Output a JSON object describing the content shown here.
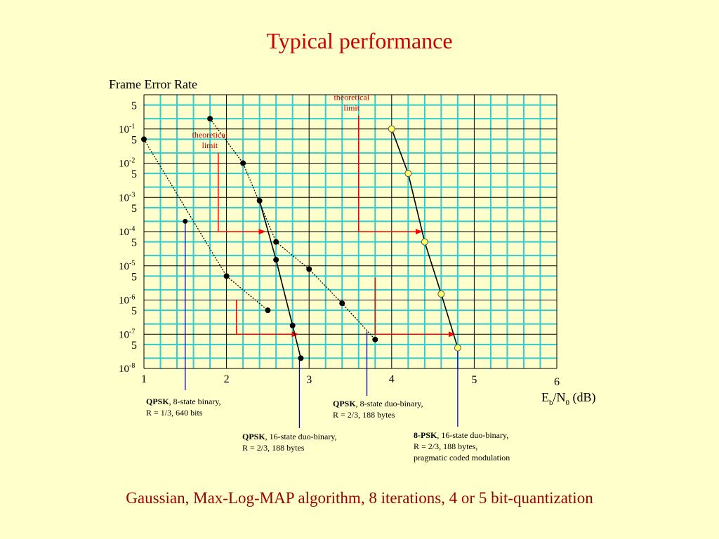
{
  "page": {
    "title": "Typical performance",
    "footer": "Gaussian, Max-Log-MAP algorithm, 8 iterations, 4 or 5 bit-quantization"
  },
  "colors": {
    "background": "#ffffcc",
    "title": "#cc0000",
    "footer": "#990000",
    "minor_grid": "#33cccc",
    "major_grid": "#000000",
    "theory_arrow": "#ff0000",
    "leader_line": "#0000cc",
    "psk_marker": "#ffff66"
  },
  "notes": [
    {
      "bold": "QPSK",
      "rest": ", 8-state binary,",
      "line2": "R = 1/3, 640 bits"
    },
    {
      "bold": "QPSK",
      "rest": ", 8-state duo-binary,",
      "line2": "R = 2/3, 188 bytes"
    },
    {
      "bold": "QPSK",
      "rest": ", 16-state duo-binary,",
      "line2": "R = 2/3, 188 bytes"
    },
    {
      "bold": "8-PSK",
      "rest": ", 16-state duo-binary,",
      "line2": "R = 2/3, 188 bytes,",
      "line3": "pragmatic coded modulation"
    }
  ],
  "chart_data": {
    "type": "line",
    "ylabel": "Frame Error Rate",
    "xlabel_base": "E",
    "xlabel_sub1": "b",
    "xlabel_mid": "/N",
    "xlabel_sub2": "0",
    "xlabel_tail": " (dB)",
    "xlim": [
      1,
      6
    ],
    "ylim_exponent": [
      -8,
      0
    ],
    "y_log_scale": true,
    "grid": true,
    "x_ticks": [
      "1",
      "2",
      "3",
      "4",
      "5",
      "6"
    ],
    "y_tick_base": "10",
    "y_tick_exponents": [
      "-1",
      "-2",
      "-3",
      "-4",
      "-5",
      "-6",
      "-7",
      "-8"
    ],
    "y_tick_five": "5",
    "series": [
      {
        "style": "dotted",
        "marker": "black",
        "points": [
          [
            1.0,
            0.05
          ],
          [
            2.0,
            5e-06
          ],
          [
            2.5,
            5e-07
          ]
        ]
      },
      {
        "style": "dotted",
        "marker": "black",
        "points": [
          [
            1.8,
            0.2
          ],
          [
            2.2,
            0.01
          ],
          [
            2.6,
            5e-05
          ],
          [
            3.0,
            8e-06
          ],
          [
            3.4,
            8e-07
          ],
          [
            3.8,
            7e-08
          ]
        ]
      },
      {
        "style": "solid",
        "marker": "black",
        "points": [
          [
            2.4,
            0.0008
          ],
          [
            2.6,
            1.5e-05
          ],
          [
            2.8,
            1.8e-07
          ],
          [
            2.9,
            2e-08
          ]
        ]
      },
      {
        "style": "solid",
        "marker": "yellow",
        "points": [
          [
            4.0,
            0.1
          ],
          [
            4.2,
            0.005
          ],
          [
            4.4,
            5e-05
          ],
          [
            4.6,
            1.5e-06
          ],
          [
            4.8,
            4e-08
          ]
        ]
      }
    ],
    "theoretical_limits": [
      {
        "label_line1": "theoretical",
        "label_line2": "limit",
        "x": 1.9,
        "y_top": 0.02,
        "y": 0.0001,
        "x_end": 2.5
      },
      {
        "label_line1": "theoretical",
        "label_line2": "limit",
        "x": 3.6,
        "y_top": 0.25,
        "y": 0.0001,
        "x_end": 4.4
      },
      {
        "x": 2.12,
        "y_top": 1e-06,
        "y": 1e-07,
        "x_end": 2.9
      },
      {
        "x": 3.8,
        "y_top": 4.5e-06,
        "y": 1e-07,
        "x_end": 4.8
      }
    ]
  }
}
